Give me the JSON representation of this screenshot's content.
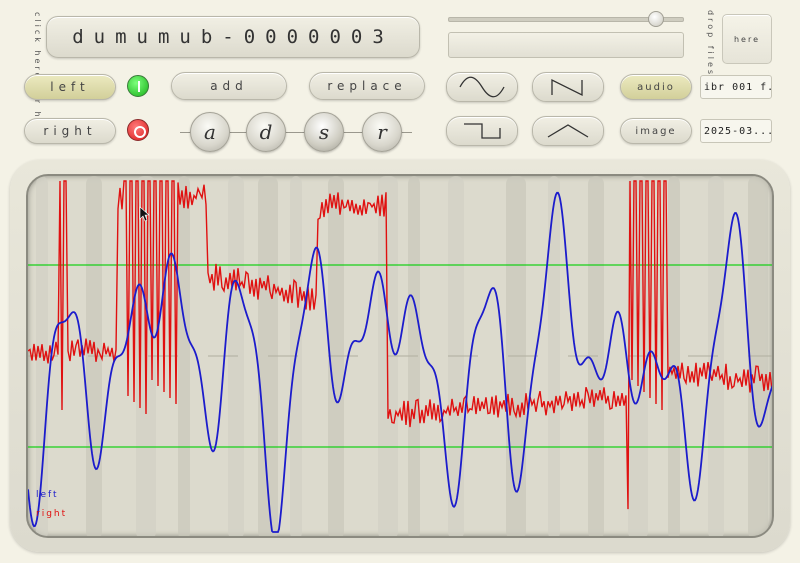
{
  "help_label": "click here for help",
  "title": "dumumub-0000003",
  "buttons": {
    "left": "left",
    "right": "right",
    "add": "add",
    "replace": "replace",
    "audio": "audio",
    "image": "image",
    "here": "here"
  },
  "drop_label": "drop files",
  "knobs": [
    "a",
    "d",
    "s",
    "r"
  ],
  "fields": {
    "audio_file": "ibr 001 f...",
    "image_file": "2025-03..."
  },
  "slider_value": 0.9,
  "legend": {
    "left": "left",
    "right": "right"
  },
  "colors": {
    "left_channel": "#1c1ccc",
    "right_channel": "#e01010",
    "threshold": "#18d018",
    "led_on": "#22c422",
    "led_off": "#e02020"
  },
  "icons": {
    "wave1": "sine-wave-icon",
    "wave2": "sawtooth-wave-icon",
    "wave3": "square-wave-icon",
    "wave4": "triangle-wave-icon",
    "led_left": "power-on-icon",
    "led_right": "power-off-icon"
  }
}
